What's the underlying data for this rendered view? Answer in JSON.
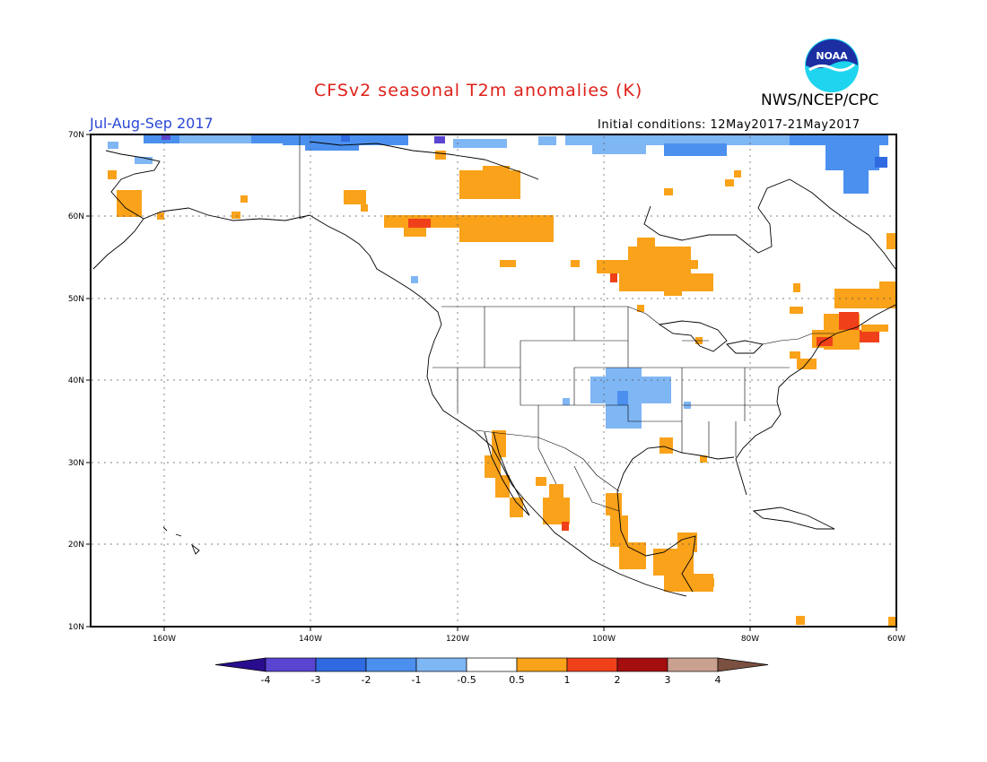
{
  "header": {
    "title": "CFSv2 seasonal T2m anomalies (K)",
    "agency": "NWS/NCEP/CPC",
    "season": "Jul-Aug-Sep 2017",
    "initial_conditions": "Initial conditions: 12May2017-21May2017",
    "logo_text": "NOAA"
  },
  "axes": {
    "lat_labels": [
      "70N",
      "60N",
      "50N",
      "40N",
      "30N",
      "20N",
      "10N"
    ],
    "lon_labels": [
      "160W",
      "140W",
      "120W",
      "100W",
      "80W",
      "60W"
    ]
  },
  "colorbar": {
    "labels": [
      "-4",
      "-3",
      "-2",
      "-1",
      "-0.5",
      "0.5",
      "1",
      "2",
      "3",
      "4"
    ],
    "colors": [
      "#2a0d8e",
      "#5a45d1",
      "#2f6ae0",
      "#4b90ee",
      "#7fb6f4",
      "#ffffff",
      "#f9a21a",
      "#f0401a",
      "#a50e0e",
      "#caa090",
      "#7a5040"
    ]
  },
  "colors": {
    "warm": "#f9a21a",
    "hot": "#f0401a",
    "cool": "#7fb6f4",
    "cold": "#4b90ee",
    "colder": "#2f6ae0",
    "coldest": "#5a45d1"
  }
}
